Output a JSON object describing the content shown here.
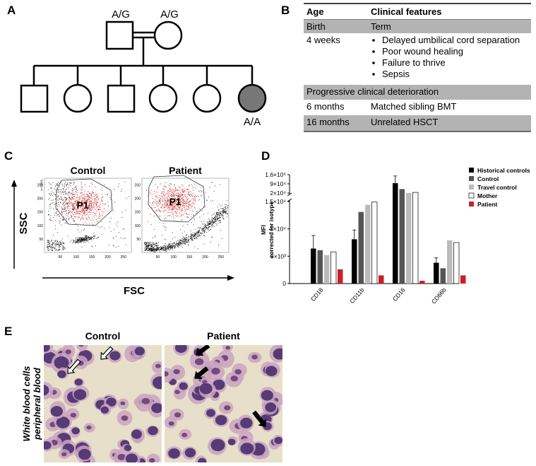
{
  "panels": {
    "a": {
      "label": "A",
      "father_genotype": "A/G",
      "mother_genotype": "A/G",
      "patient_genotype": "A/A"
    },
    "b": {
      "label": "B",
      "table": {
        "header": [
          "Age",
          "Clinical features"
        ],
        "rows": [
          {
            "age": "Birth",
            "features": [
              "Term"
            ]
          },
          {
            "age": "4 weeks",
            "features": [
              "Delayed umbilical cord separation",
              "Poor wound healing",
              "Failure to thrive",
              "Sepsis"
            ]
          },
          {
            "age": "",
            "features": [
              "Progressive clinical deterioration"
            ]
          },
          {
            "age": "6 months",
            "features": [
              "Matched sibling BMT"
            ]
          },
          {
            "age": "16 months",
            "features": [
              "Unrelated HSCT"
            ]
          }
        ]
      }
    },
    "c": {
      "label": "C",
      "titles": [
        "Control",
        "Patient"
      ],
      "gate": "P1",
      "y_axis": "SSC",
      "x_axis": "FSC",
      "axis_ticks": [
        50,
        100,
        150,
        200,
        250
      ],
      "scale_note": "(x 1,000)"
    },
    "e": {
      "label": "E",
      "titles": [
        "Control",
        "Patient"
      ],
      "side_label": [
        "White blood cells",
        "peripheral blood"
      ]
    }
  },
  "chart_data": {
    "type": "bar",
    "label": "D",
    "ylabel": [
      "MFI",
      "corrected for isotype"
    ],
    "categories": [
      "CD18",
      "CD11b",
      "CD16",
      "CD66b"
    ],
    "ylim": [
      0,
      160000
    ],
    "y_break": [
      15000,
      20000
    ],
    "yticks": [
      0,
      {
        "value": 5000,
        "label": "5×10³"
      },
      {
        "value": 10000,
        "label": "1×10⁴"
      },
      {
        "value": 15000,
        "label": "1.5×10⁴"
      },
      {
        "value": 20000,
        "label": "2×10⁴"
      },
      {
        "value": 90000,
        "label": "9×10⁴"
      },
      {
        "value": 160000,
        "label": "1.6×10⁵"
      }
    ],
    "series": [
      {
        "name": "Historical controls",
        "color": "#000000",
        "values": [
          6400,
          8100,
          95000,
          3800
        ],
        "errors": [
          2400,
          1700,
          55000,
          900
        ]
      },
      {
        "name": "Control",
        "color": "#555555",
        "values": [
          6100,
          13100,
          50000,
          2800
        ]
      },
      {
        "name": "Travel control",
        "color": "#bbbbbb",
        "values": [
          5200,
          14400,
          21000,
          7900
        ]
      },
      {
        "name": "Mother",
        "color": "#ffffff",
        "values": [
          5800,
          14900,
          25000,
          7500
        ]
      },
      {
        "name": "Patient",
        "color": "#c8202a",
        "values": [
          2600,
          1500,
          500,
          1500
        ]
      }
    ]
  }
}
